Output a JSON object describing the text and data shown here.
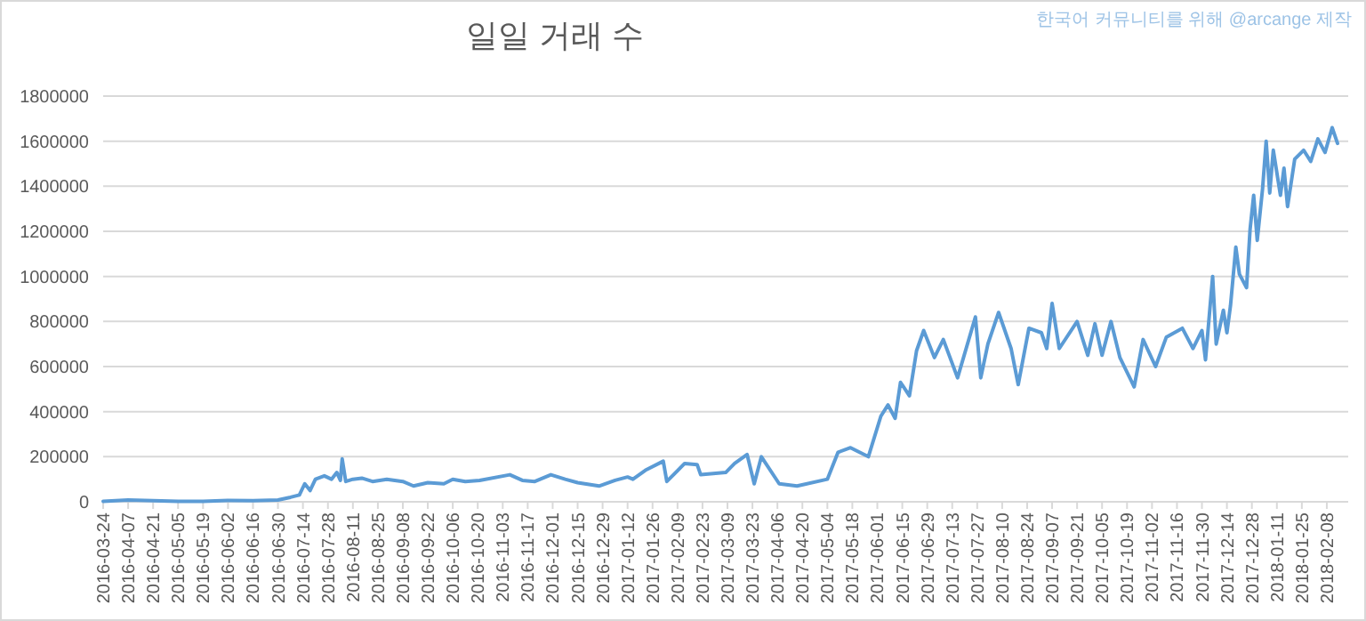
{
  "chart_data": {
    "type": "line",
    "title": "일일 거래 수",
    "annotations": [
      "한국어 커뮤니티를 위해 @arcange 제작"
    ],
    "x": [
      "2016-03-24",
      "2016-04-07",
      "2016-04-21",
      "2016-05-05",
      "2016-05-19",
      "2016-06-02",
      "2016-06-16",
      "2016-06-30",
      "2016-07-07",
      "2016-07-12",
      "2016-07-15",
      "2016-07-18",
      "2016-07-21",
      "2016-07-26",
      "2016-07-30",
      "2016-08-02",
      "2016-08-04",
      "2016-08-05",
      "2016-08-07",
      "2016-08-11",
      "2016-08-16",
      "2016-08-22",
      "2016-08-30",
      "2016-09-08",
      "2016-09-14",
      "2016-09-22",
      "2016-10-01",
      "2016-10-06",
      "2016-10-13",
      "2016-10-21",
      "2016-11-07",
      "2016-11-14",
      "2016-11-21",
      "2016-11-30",
      "2016-12-08",
      "2016-12-15",
      "2016-12-27",
      "2017-01-05",
      "2017-01-12",
      "2017-01-15",
      "2017-01-22",
      "2017-02-01",
      "2017-02-03",
      "2017-02-13",
      "2017-02-20",
      "2017-02-22",
      "2017-03-08",
      "2017-03-13",
      "2017-03-20",
      "2017-03-24",
      "2017-03-28",
      "2017-04-07",
      "2017-04-17",
      "2017-05-04",
      "2017-05-10",
      "2017-05-17",
      "2017-05-27",
      "2017-06-03",
      "2017-06-07",
      "2017-06-11",
      "2017-06-14",
      "2017-06-19",
      "2017-06-23",
      "2017-06-27",
      "2017-07-03",
      "2017-07-08",
      "2017-07-16",
      "2017-07-26",
      "2017-07-29",
      "2017-08-02",
      "2017-08-08",
      "2017-08-15",
      "2017-08-19",
      "2017-08-25",
      "2017-09-01",
      "2017-09-04",
      "2017-09-07",
      "2017-09-11",
      "2017-09-21",
      "2017-09-27",
      "2017-10-01",
      "2017-10-05",
      "2017-10-10",
      "2017-10-15",
      "2017-10-23",
      "2017-10-28",
      "2017-11-04",
      "2017-11-10",
      "2017-11-19",
      "2017-11-25",
      "2017-11-30",
      "2017-12-02",
      "2017-12-06",
      "2017-12-08",
      "2017-12-12",
      "2017-12-14",
      "2017-12-16",
      "2017-12-19",
      "2017-12-21",
      "2017-12-25",
      "2017-12-27",
      "2017-12-29",
      "2017-12-31",
      "2018-01-03",
      "2018-01-05",
      "2018-01-07",
      "2018-01-09",
      "2018-01-13",
      "2018-01-15",
      "2018-01-17",
      "2018-01-21",
      "2018-01-26",
      "2018-01-30",
      "2018-02-03",
      "2018-02-07",
      "2018-02-11",
      "2018-02-14"
    ],
    "series": [
      {
        "color": "#5b9bd5",
        "values": [
          2000,
          8000,
          5000,
          2000,
          2000,
          6000,
          5000,
          8000,
          20000,
          30000,
          80000,
          50000,
          100000,
          115000,
          100000,
          130000,
          95000,
          190000,
          90000,
          100000,
          105000,
          90000,
          100000,
          90000,
          70000,
          85000,
          80000,
          100000,
          90000,
          95000,
          120000,
          95000,
          90000,
          120000,
          100000,
          85000,
          70000,
          95000,
          110000,
          100000,
          140000,
          180000,
          90000,
          170000,
          165000,
          120000,
          130000,
          170000,
          210000,
          80000,
          200000,
          80000,
          70000,
          100000,
          220000,
          240000,
          200000,
          380000,
          430000,
          370000,
          530000,
          470000,
          670000,
          760000,
          640000,
          720000,
          550000,
          820000,
          550000,
          700000,
          840000,
          680000,
          520000,
          770000,
          750000,
          680000,
          880000,
          680000,
          800000,
          650000,
          790000,
          650000,
          800000,
          640000,
          510000,
          720000,
          600000,
          730000,
          770000,
          680000,
          760000,
          630000,
          1000000,
          700000,
          850000,
          750000,
          870000,
          1130000,
          1010000,
          950000,
          1210000,
          1360000,
          1160000,
          1390000,
          1600000,
          1370000,
          1560000,
          1360000,
          1480000,
          1310000,
          1520000,
          1560000,
          1510000,
          1610000,
          1550000,
          1660000,
          1590000
        ]
      }
    ],
    "xlim": [
      "2016-03-24",
      "2018-02-20"
    ],
    "xticks": [
      "2016-03-24",
      "2016-04-07",
      "2016-04-21",
      "2016-05-05",
      "2016-05-19",
      "2016-06-02",
      "2016-06-16",
      "2016-06-30",
      "2016-07-14",
      "2016-07-28",
      "2016-08-11",
      "2016-08-25",
      "2016-09-08",
      "2016-09-22",
      "2016-10-06",
      "2016-10-20",
      "2016-11-03",
      "2016-11-17",
      "2016-12-01",
      "2016-12-15",
      "2016-12-29",
      "2017-01-12",
      "2017-01-26",
      "2017-02-09",
      "2017-02-23",
      "2017-03-09",
      "2017-03-23",
      "2017-04-06",
      "2017-04-20",
      "2017-05-04",
      "2017-05-18",
      "2017-06-01",
      "2017-06-15",
      "2017-06-29",
      "2017-07-13",
      "2017-07-27",
      "2017-08-10",
      "2017-08-24",
      "2017-09-07",
      "2017-09-21",
      "2017-10-05",
      "2017-10-19",
      "2017-11-02",
      "2017-11-16",
      "2017-11-30",
      "2017-12-14",
      "2017-12-28",
      "2018-01-11",
      "2018-01-25",
      "2018-02-08"
    ],
    "ylim": [
      0,
      1800000
    ],
    "yticks": [
      0,
      200000,
      400000,
      600000,
      800000,
      1000000,
      1200000,
      1400000,
      1600000,
      1800000
    ],
    "grid": "y",
    "marker": "none",
    "line_style": "solid"
  }
}
